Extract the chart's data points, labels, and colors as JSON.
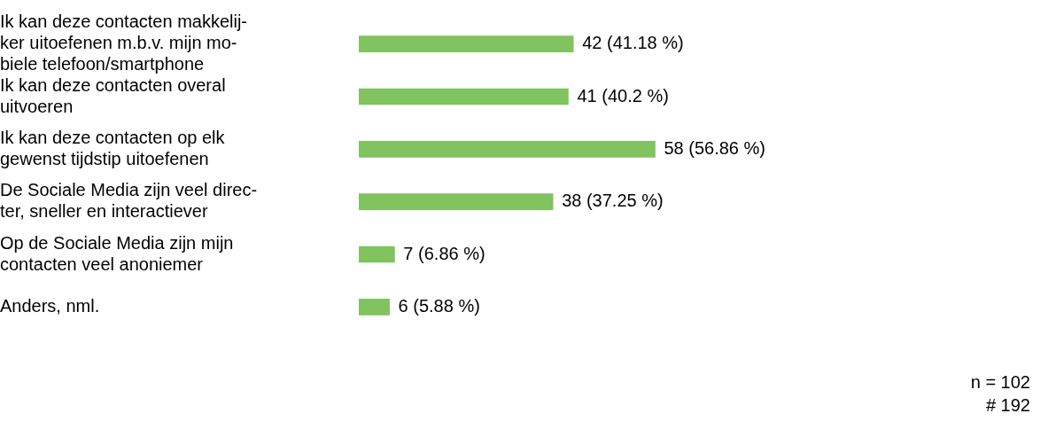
{
  "chart_data": {
    "type": "bar",
    "orientation": "horizontal",
    "categories": [
      "Ik kan deze contacten makkelij-\nker uitoefenen m.b.v. mijn mo-\nbiele telefoon/smartphone",
      "Ik kan deze contacten overal\nuitvoeren",
      "Ik kan deze contacten op elk\ngewenst tijdstip uitoefenen",
      "De Sociale Media zijn veel direc-\nter, sneller en interactiever",
      "Op de Sociale Media zijn mijn\ncontacten veel anoniemer",
      "Anders, nml."
    ],
    "values": [
      42,
      41,
      58,
      38,
      7,
      6
    ],
    "value_labels": [
      "42 (41.18 %)",
      "41 (40.2 %)",
      "58 (56.86 %)",
      "38 (37.25 %)",
      "7 (6.86 %)",
      "6 (5.88 %)"
    ],
    "color": "#80c35f",
    "tick_labels": "y",
    "grid": false,
    "legend": false,
    "annotations": [
      "n = 102",
      "# 192"
    ]
  }
}
